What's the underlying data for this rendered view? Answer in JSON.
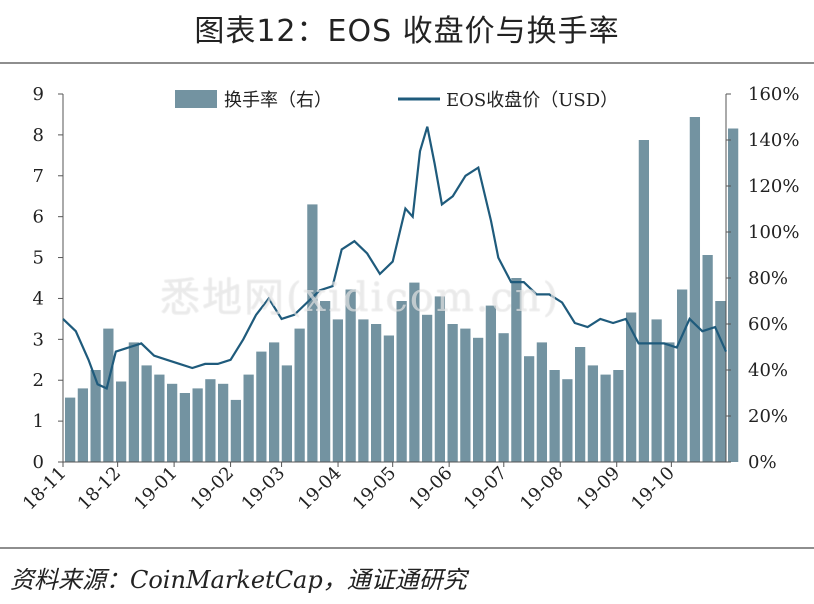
{
  "title": "图表12：EOS 收盘价与换手率",
  "source": "资料来源：CoinMarketCap，通证通研究",
  "watermark": "悉地网(xidicom.cn)",
  "chart_data": {
    "type": "bar+line",
    "x_ticks": [
      "18-11",
      "18-12",
      "19-01",
      "19-02",
      "19-03",
      "19-04",
      "19-05",
      "19-06",
      "19-07",
      "19-08",
      "19-09",
      "19-10"
    ],
    "y_left": {
      "ticks": [
        "0",
        "1",
        "2",
        "3",
        "4",
        "5",
        "6",
        "7",
        "8",
        "9"
      ],
      "ylim": [
        0,
        9
      ]
    },
    "y_right": {
      "ticks": [
        "0%",
        "20%",
        "40%",
        "60%",
        "80%",
        "100%",
        "120%",
        "140%",
        "160%"
      ],
      "ylim": [
        0,
        160
      ]
    },
    "legend": {
      "placement": "top-center"
    },
    "colors": {
      "bars": "#7393a1",
      "line": "#1f5b7c"
    },
    "series": [
      {
        "name": "换手率（右）",
        "type": "bar",
        "axis": "right",
        "x": [
          "2018-11-01",
          "2018-11-08",
          "2018-11-15",
          "2018-11-22",
          "2018-11-29",
          "2018-12-06",
          "2018-12-13",
          "2018-12-20",
          "2018-12-27",
          "2019-01-03",
          "2019-01-10",
          "2019-01-17",
          "2019-01-24",
          "2019-01-31",
          "2019-02-07",
          "2019-02-14",
          "2019-02-21",
          "2019-02-28",
          "2019-03-07",
          "2019-03-14",
          "2019-03-21",
          "2019-03-28",
          "2019-04-04",
          "2019-04-11",
          "2019-04-18",
          "2019-04-25",
          "2019-05-02",
          "2019-05-09",
          "2019-05-16",
          "2019-05-23",
          "2019-05-30",
          "2019-06-06",
          "2019-06-13",
          "2019-06-20",
          "2019-06-27",
          "2019-07-04",
          "2019-07-11",
          "2019-07-18",
          "2019-07-25",
          "2019-08-01",
          "2019-08-08",
          "2019-08-15",
          "2019-08-22",
          "2019-08-29",
          "2019-09-05",
          "2019-09-12",
          "2019-09-19",
          "2019-09-26",
          "2019-10-03",
          "2019-10-10",
          "2019-10-17",
          "2019-10-24",
          "2019-10-31"
        ],
        "values": [
          28,
          32,
          40,
          58,
          35,
          52,
          42,
          38,
          34,
          30,
          32,
          36,
          34,
          27,
          38,
          48,
          52,
          42,
          58,
          112,
          70,
          62,
          75,
          62,
          60,
          55,
          70,
          78,
          64,
          72,
          60,
          58,
          54,
          68,
          56,
          80,
          46,
          52,
          40,
          36,
          50,
          42,
          38,
          40,
          65,
          140,
          62,
          52,
          75,
          150,
          90,
          70,
          145
        ]
      },
      {
        "name": "EOS收盘价（USD）",
        "type": "line",
        "axis": "left",
        "x": [
          "2018-11-01",
          "2018-11-08",
          "2018-11-15",
          "2018-11-20",
          "2018-11-25",
          "2018-11-30",
          "2018-12-07",
          "2018-12-14",
          "2018-12-21",
          "2018-12-28",
          "2019-01-04",
          "2019-01-11",
          "2019-01-18",
          "2019-01-25",
          "2019-02-01",
          "2019-02-08",
          "2019-02-15",
          "2019-02-22",
          "2019-03-01",
          "2019-03-08",
          "2019-03-15",
          "2019-03-22",
          "2019-03-29",
          "2019-04-03",
          "2019-04-10",
          "2019-04-17",
          "2019-04-24",
          "2019-05-01",
          "2019-05-08",
          "2019-05-12",
          "2019-05-16",
          "2019-05-20",
          "2019-05-24",
          "2019-05-28",
          "2019-06-03",
          "2019-06-10",
          "2019-06-17",
          "2019-06-24",
          "2019-06-28",
          "2019-07-05",
          "2019-07-12",
          "2019-07-19",
          "2019-07-26",
          "2019-08-02",
          "2019-08-09",
          "2019-08-16",
          "2019-08-23",
          "2019-08-30",
          "2019-09-06",
          "2019-09-13",
          "2019-09-20",
          "2019-09-27",
          "2019-10-04",
          "2019-10-11",
          "2019-10-18",
          "2019-10-25",
          "2019-10-31"
        ],
        "values": [
          3.5,
          3.2,
          2.5,
          1.9,
          1.8,
          2.7,
          2.8,
          2.9,
          2.6,
          2.5,
          2.4,
          2.3,
          2.4,
          2.4,
          2.5,
          3.0,
          3.6,
          4.0,
          3.5,
          3.6,
          3.9,
          4.2,
          4.3,
          5.2,
          5.4,
          5.1,
          4.6,
          4.9,
          6.2,
          6.0,
          7.6,
          8.2,
          7.3,
          6.3,
          6.5,
          7.0,
          7.2,
          5.9,
          5.0,
          4.4,
          4.4,
          4.1,
          4.1,
          3.9,
          3.4,
          3.3,
          3.5,
          3.4,
          3.5,
          2.9,
          2.9,
          2.9,
          2.8,
          3.5,
          3.2,
          3.3,
          2.7
        ]
      }
    ]
  }
}
